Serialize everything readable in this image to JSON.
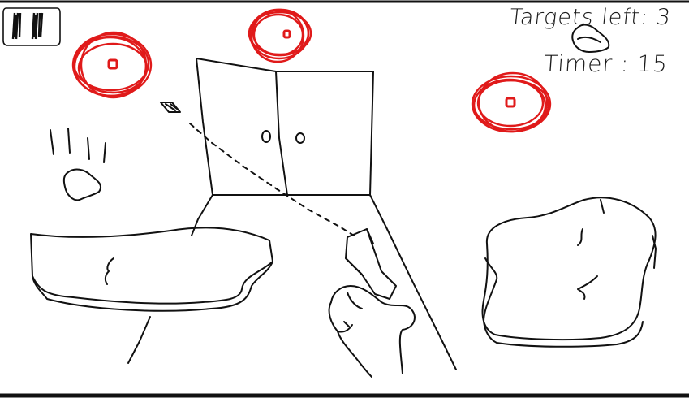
{
  "hud": {
    "targets_label": "Targets left",
    "targets_value": "3",
    "timer_label": "Timer",
    "timer_value": "15"
  },
  "targets": [
    {
      "id": "target-left"
    },
    {
      "id": "target-center"
    },
    {
      "id": "target-right"
    }
  ],
  "icons": {
    "pause": "pause-icon",
    "crosshair": "target-icon",
    "gun": "gun-icon",
    "hand": "hand-icon"
  },
  "colors": {
    "target_red": "#e01a1a",
    "ink": "#111111",
    "background": "#ffffff"
  }
}
